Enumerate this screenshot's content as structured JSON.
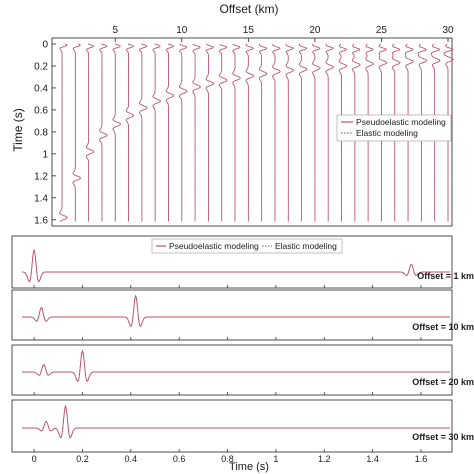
{
  "colors": {
    "pseudoelastic": "#c0506a",
    "elastic": "#5a5a8a",
    "axis": "#222222",
    "grid": "#dddddd"
  },
  "top_panel": {
    "xlabel": "Offset (km)",
    "ylabel": "Time (s)",
    "legend": [
      "Pseudoelastic modeling",
      "Elastic modeling"
    ]
  },
  "bottom_panels": {
    "xlabel": "Time (s)",
    "legend": [
      "Pseudoelastic modeling",
      "Elastic modeling"
    ],
    "offset_labels": [
      "Offset = 1 km",
      "Offset = 10 km",
      "Offset = 20 km",
      "Offset = 30 km"
    ]
  },
  "chart_data": [
    {
      "type": "line",
      "subtype": "seismic-gather",
      "xlabel": "Offset (km)",
      "ylabel": "Time (s)",
      "x_ticks": [
        5,
        10,
        15,
        20,
        25,
        30
      ],
      "y_ticks": [
        0,
        0.2,
        0.4,
        0.6,
        0.8,
        1,
        1.2,
        1.4,
        1.6
      ],
      "xlim": [
        1,
        30
      ],
      "ylim": [
        0,
        1.62
      ],
      "y_reversed": true,
      "x_axis_position": "top",
      "trace_offsets_km": [
        1,
        2,
        3,
        4,
        5,
        6,
        7,
        8,
        9,
        10,
        11,
        12,
        13,
        14,
        15,
        16,
        17,
        18,
        19,
        20,
        21,
        22,
        23,
        24,
        25,
        26,
        27,
        28,
        29,
        30
      ],
      "direct_arrival_times_s": [
        0.01,
        0.01,
        0.02,
        0.02,
        0.02,
        0.02,
        0.02,
        0.02,
        0.02,
        0.03,
        0.03,
        0.03,
        0.03,
        0.03,
        0.04,
        0.04,
        0.04,
        0.04,
        0.04,
        0.04,
        0.04,
        0.05,
        0.05,
        0.05,
        0.05,
        0.05,
        0.05,
        0.05,
        0.05,
        0.05
      ],
      "reflection_arrival_times_s": [
        1.58,
        1.22,
        0.98,
        0.83,
        0.73,
        0.65,
        0.58,
        0.52,
        0.47,
        0.43,
        0.39,
        0.36,
        0.33,
        0.31,
        0.29,
        0.27,
        0.25,
        0.24,
        0.23,
        0.22,
        0.21,
        0.2,
        0.19,
        0.18,
        0.17,
        0.17,
        0.16,
        0.15,
        0.15,
        0.14
      ],
      "legend": [
        "Pseudoelastic modeling",
        "Elastic modeling"
      ],
      "legend_position": "center-right"
    },
    {
      "type": "line",
      "subtype": "trace-comparison",
      "xlabel": "Time (s)",
      "x_ticks": [
        0,
        0.2,
        0.4,
        0.6,
        0.8,
        1,
        1.2,
        1.4,
        1.6
      ],
      "xlim": [
        -0.05,
        1.72
      ],
      "panels": [
        {
          "label": "Offset = 1 km",
          "pulses": [
            {
              "t": 0.0,
              "amp": 1.0
            },
            {
              "t": 1.56,
              "amp": 0.35
            }
          ]
        },
        {
          "label": "Offset = 10 km",
          "pulses": [
            {
              "t": 0.03,
              "amp": 0.45
            },
            {
              "t": 0.42,
              "amp": 1.0
            }
          ]
        },
        {
          "label": "Offset = 20 km",
          "pulses": [
            {
              "t": 0.04,
              "amp": 0.35
            },
            {
              "t": 0.2,
              "amp": 1.0
            }
          ]
        },
        {
          "label": "Offset = 30 km",
          "pulses": [
            {
              "t": 0.05,
              "amp": 0.3
            },
            {
              "t": 0.13,
              "amp": 1.0
            }
          ]
        }
      ],
      "legend": [
        "Pseudoelastic modeling",
        "Elastic modeling"
      ],
      "legend_position": "top-center"
    }
  ]
}
